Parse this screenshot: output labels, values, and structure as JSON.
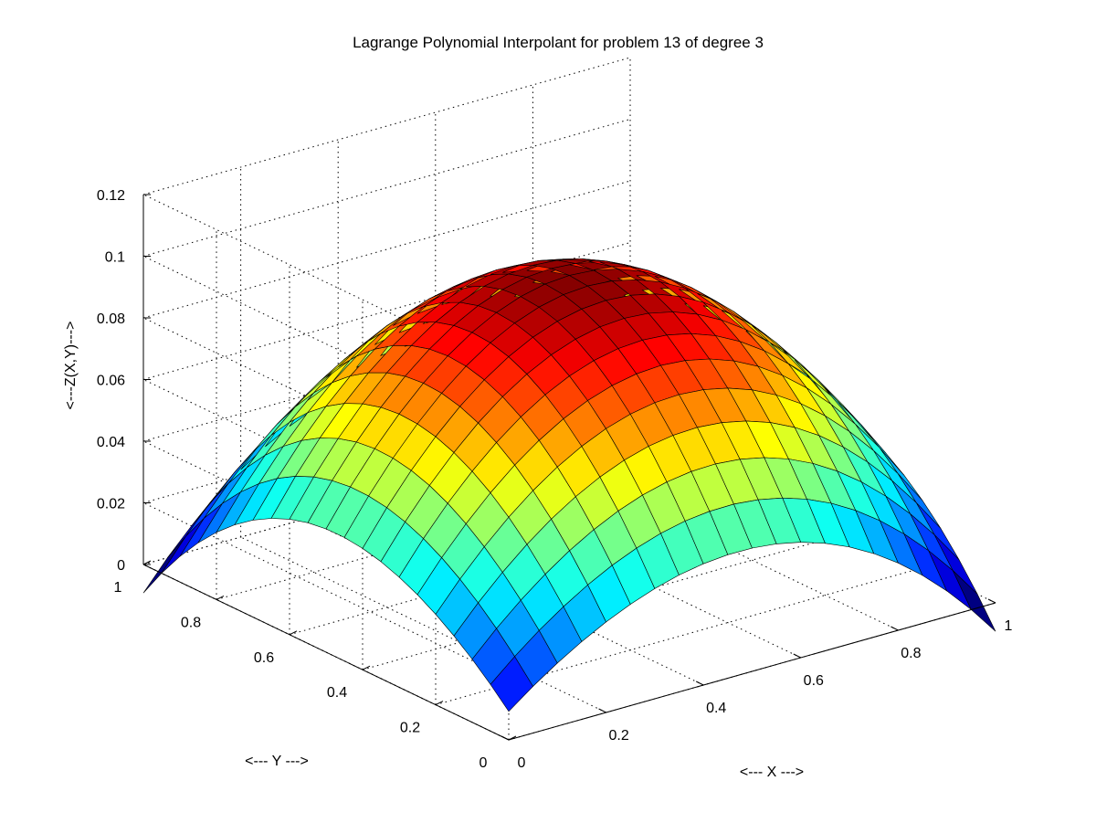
{
  "chart_data": {
    "type": "surface",
    "title": "Lagrange Polynomial Interpolant for problem 13 of degree 3",
    "xlabel": "<--- X --->",
    "ylabel": "<--- Y --->",
    "zlabel": "<---Z(X,Y)--->",
    "xlim": [
      0,
      1
    ],
    "ylim": [
      0,
      1
    ],
    "zlim": [
      0,
      0.12
    ],
    "x_ticks": [
      "0",
      "0.2",
      "0.4",
      "0.6",
      "0.8",
      "1"
    ],
    "y_ticks": [
      "0",
      "0.2",
      "0.4",
      "0.6",
      "0.8",
      "1"
    ],
    "z_ticks": [
      "0",
      "0.02",
      "0.04",
      "0.06",
      "0.08",
      "0.1",
      "0.12"
    ],
    "grid": true,
    "colormap": "jet",
    "mesh_size": 20,
    "surface_z": {
      "corner_00": 0.0,
      "corner_10": 0.0185,
      "corner_01": 0.0185,
      "corner_11": 0.0,
      "center": 0.1,
      "edge_mid": 0.04
    }
  }
}
